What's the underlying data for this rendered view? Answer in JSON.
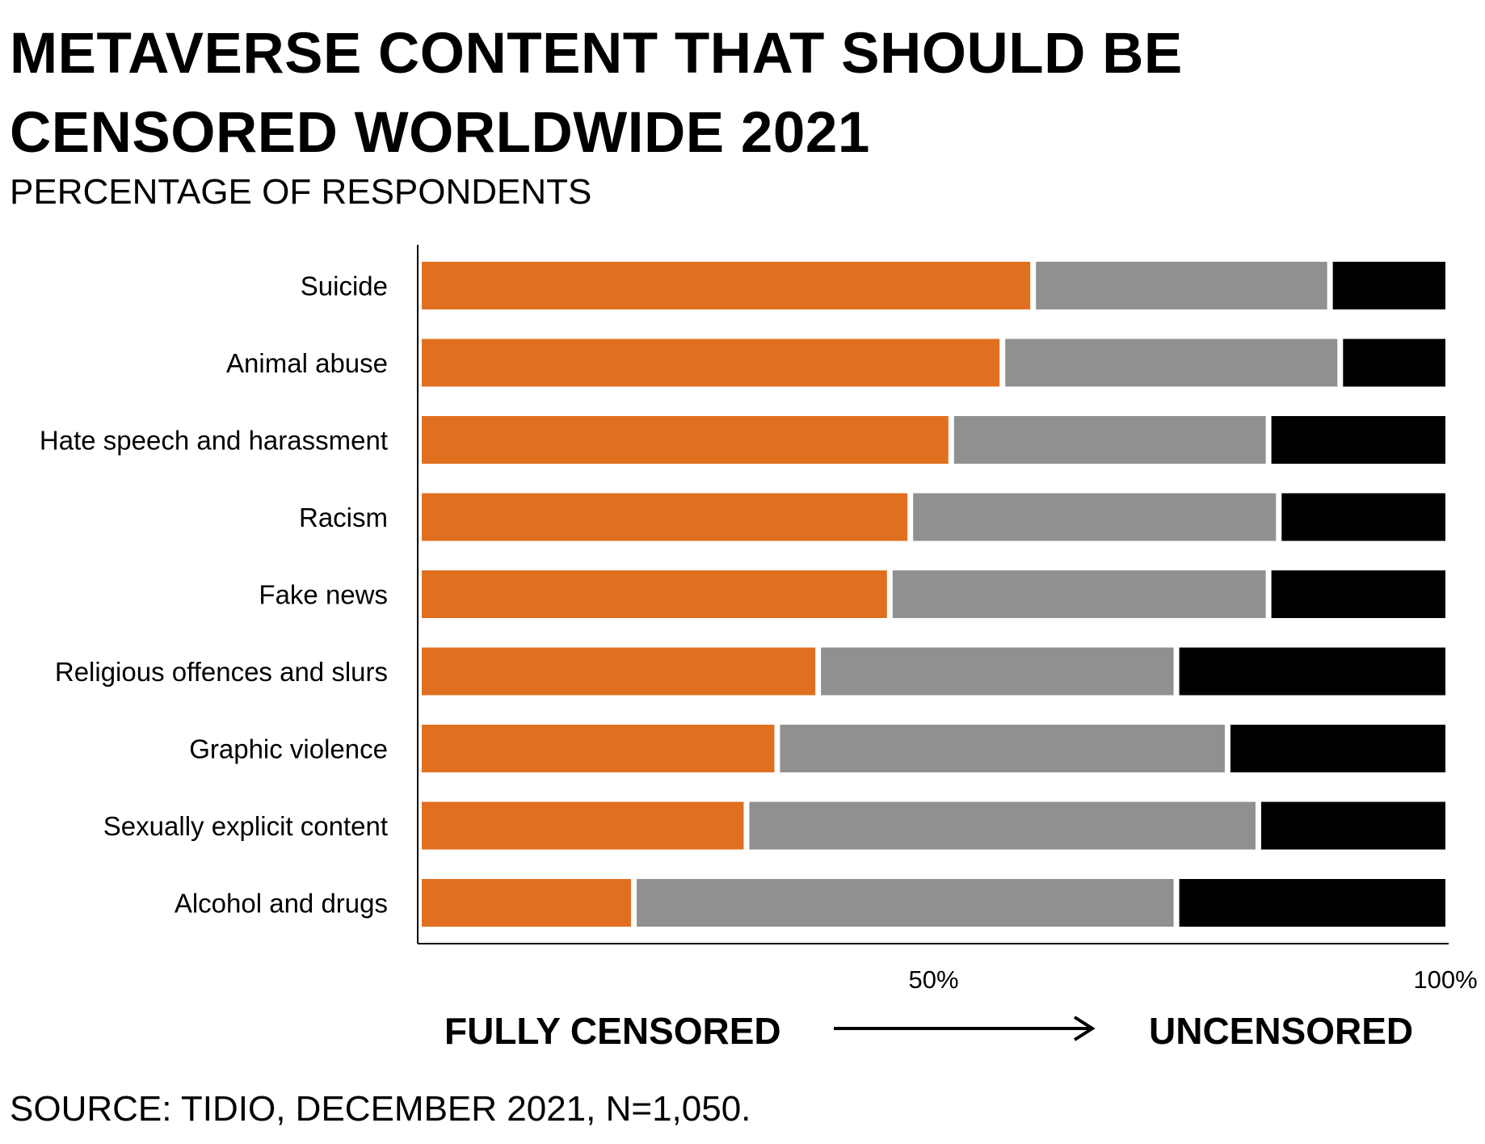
{
  "chart_data": {
    "type": "bar",
    "orientation": "horizontal",
    "stacked": true,
    "title": "METAVERSE CONTENT THAT SHOULD BE CENSORED WORLDWIDE 2021",
    "subtitle": "PERCENTAGE OF RESPONDENTS",
    "categories": [
      "Suicide",
      "Animal abuse",
      "Hate speech and harassment",
      "Racism",
      "Fake news",
      "Religious offences and slurs",
      "Graphic violence",
      "Sexually explicit content",
      "Alcohol and drugs"
    ],
    "series": [
      {
        "values": [
          60,
          57,
          52,
          48,
          46,
          39,
          35,
          32,
          21
        ],
        "color": "#E07020"
      },
      {
        "values": [
          29,
          33,
          31,
          36,
          37,
          35,
          44,
          50,
          53
        ],
        "color": "#909090"
      },
      {
        "values": [
          11,
          10,
          17,
          16,
          17,
          26,
          21,
          18,
          26
        ],
        "color": "#000000"
      }
    ],
    "x_ticks": [
      "50%",
      "100%"
    ],
    "xlim": [
      0,
      100
    ],
    "grid": false,
    "scale_left_label": "FULLY CENSORED",
    "scale_right_label": "UNCENSORED",
    "source": "SOURCE: TIDIO, DECEMBER 2021, N=1,050."
  }
}
